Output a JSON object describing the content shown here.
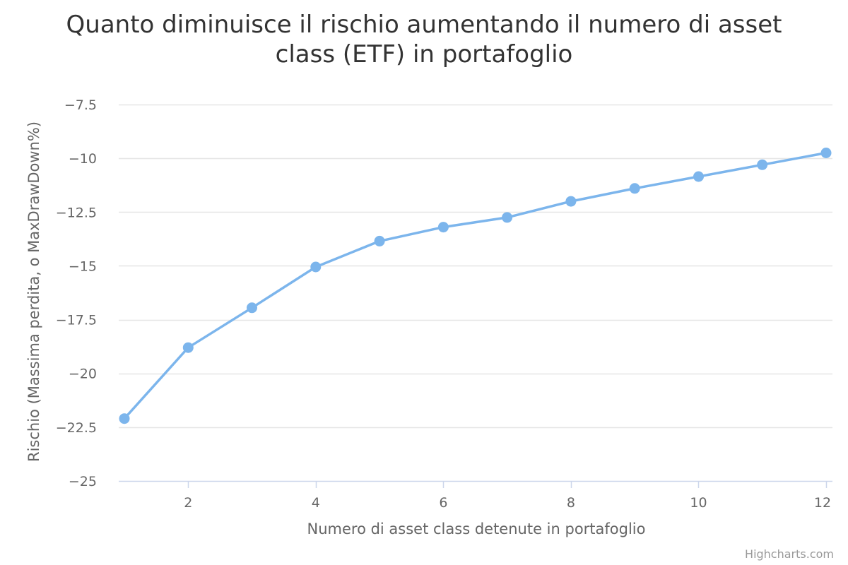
{
  "chart_data": {
    "type": "line",
    "title": [
      "Quanto diminuisce il rischio aumentando il numero di asset",
      "class (ETF) in portafoglio"
    ],
    "xlabel": "Numero di asset class detenute in portafoglio",
    "ylabel": "Rischio (Massima perdita, o MaxDrawDown%)",
    "x": [
      1,
      2,
      3,
      4,
      5,
      6,
      7,
      8,
      9,
      10,
      11,
      12
    ],
    "series": [
      {
        "values": [
          -22.1,
          -18.8,
          -16.95,
          -15.05,
          -13.85,
          -13.2,
          -12.75,
          -12.0,
          -11.4,
          -10.85,
          -10.3,
          -9.75
        ]
      }
    ],
    "xlim": [
      1,
      12
    ],
    "ylim": [
      -25,
      -7.5
    ],
    "x_ticks": [
      2,
      4,
      6,
      8,
      10,
      12
    ],
    "x_tick_labels": [
      "2",
      "4",
      "6",
      "8",
      "10",
      "12"
    ],
    "y_ticks": [
      -7.5,
      -10,
      -12.5,
      -15,
      -17.5,
      -20,
      -22.5,
      -25
    ],
    "y_tick_labels": [
      "−7.5",
      "−10",
      "−12.5",
      "−15",
      "−17.5",
      "−20",
      "−22.5",
      "−25"
    ],
    "grid": true,
    "legend": "none",
    "colors": {
      "series": "#7cb5ec",
      "grid": "#e6e6e6",
      "axis": "#ccd6eb"
    }
  },
  "credits": "Highcharts.com"
}
